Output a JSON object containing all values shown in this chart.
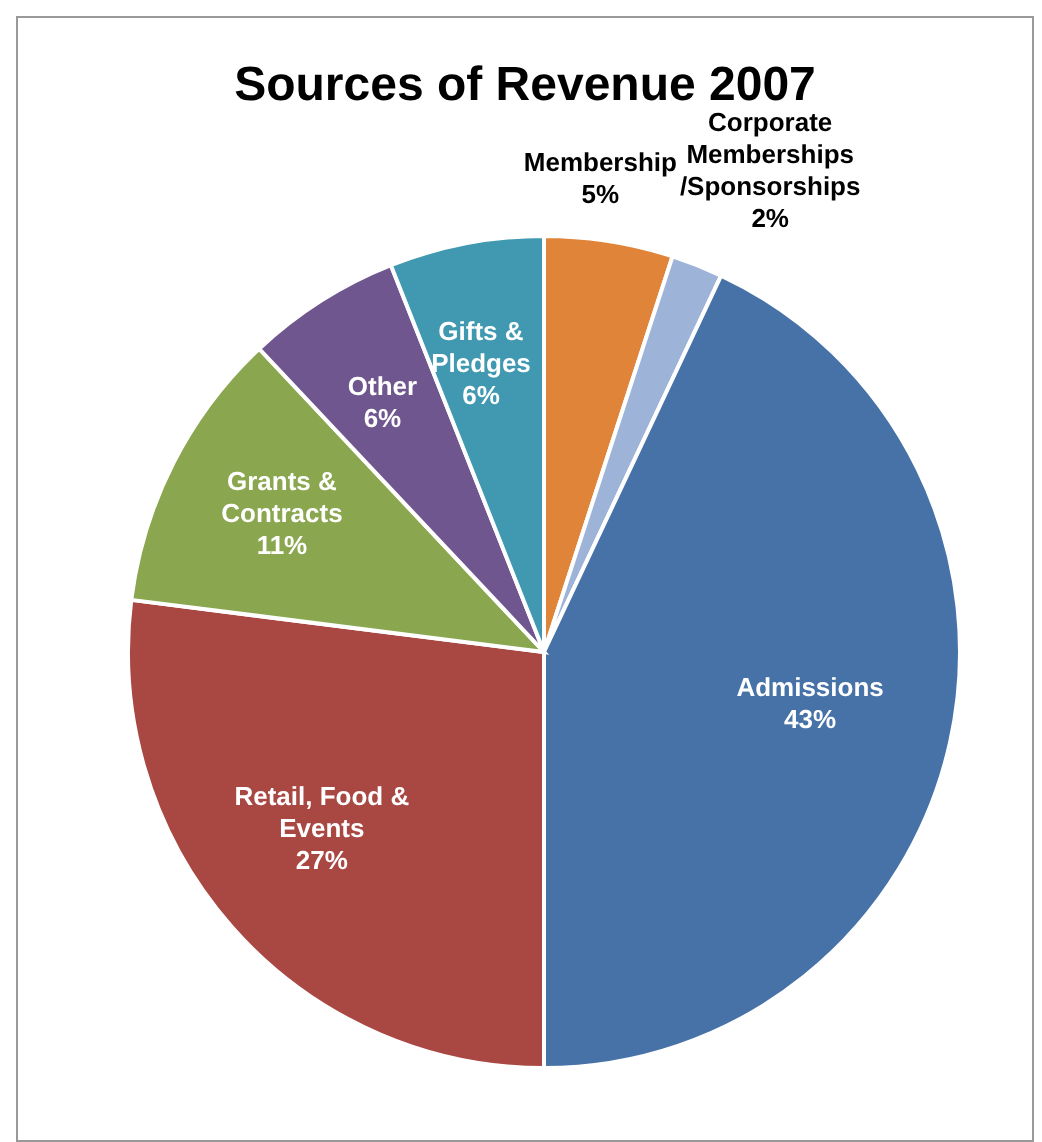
{
  "chart_data": {
    "type": "pie",
    "title": "Sources of Revenue 2007",
    "categories": [
      "Membership",
      "Corporate Memberships /Sponsorships",
      "Admissions",
      "Retail, Food & Events",
      "Grants & Contracts",
      "Other",
      "Gifts & Pledges"
    ],
    "values": [
      5,
      2,
      43,
      27,
      11,
      6,
      6
    ],
    "colors": [
      "#e0843a",
      "#9db3d8",
      "#4672a8",
      "#a94743",
      "#8aa74f",
      "#6f568f",
      "#4099b0"
    ],
    "value_labels": [
      "5%",
      "2%",
      "43%",
      "27%",
      "11%",
      "6%",
      "6%"
    ],
    "legend": false
  }
}
